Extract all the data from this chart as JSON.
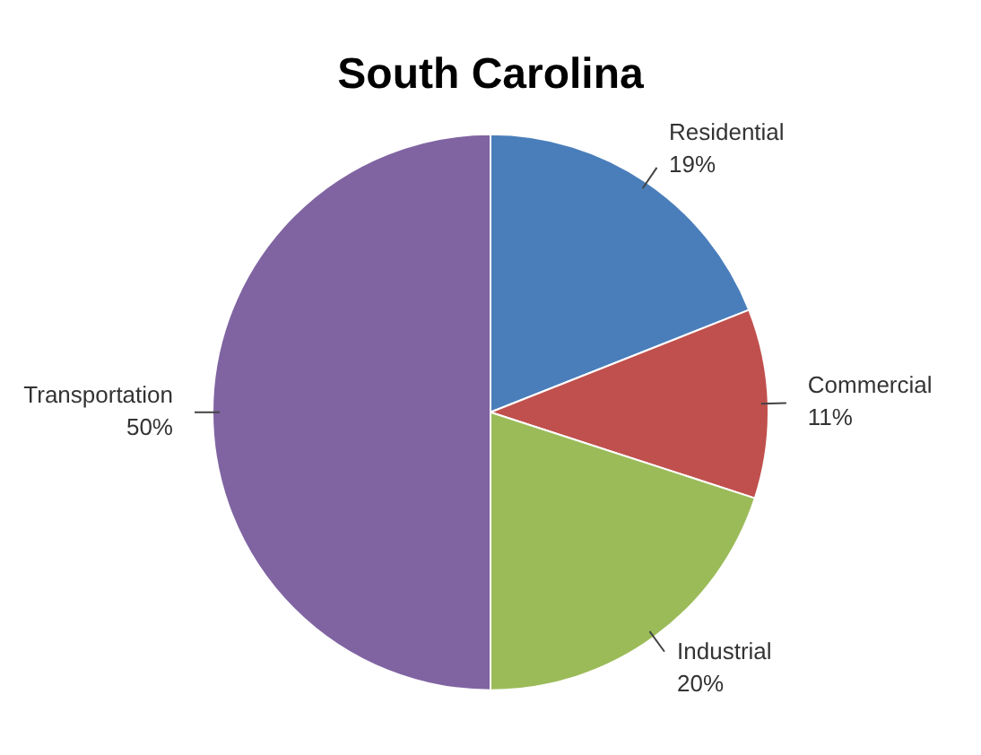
{
  "chart_data": {
    "type": "pie",
    "title": "South Carolina",
    "categories": [
      "Residential",
      "Commercial",
      "Industrial",
      "Transportation"
    ],
    "values": [
      19,
      11,
      20,
      50
    ],
    "value_labels": [
      "19%",
      "11%",
      "20%",
      "50%"
    ],
    "colors": [
      "#4a7ebb",
      "#c0504d",
      "#9bbb59",
      "#8064a2"
    ],
    "legend": false
  }
}
